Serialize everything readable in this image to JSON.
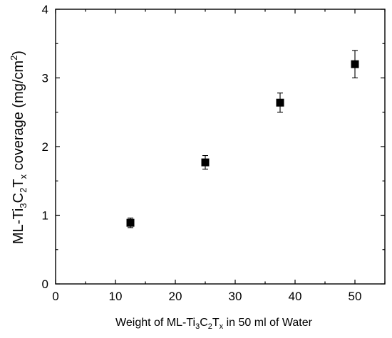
{
  "chart_data": {
    "type": "scatter",
    "title": "",
    "xlabel": {
      "prefix": "Weight of ML-Ti",
      "s1": "3",
      "mid1": "C",
      "s2": "2",
      "mid2": "T",
      "s3": "x",
      "suffix": " in 50 ml of Water"
    },
    "ylabel": {
      "prefix": "ML-Ti",
      "s1": "3",
      "mid1": "C",
      "s2": "2",
      "mid2": "T",
      "s3": "x",
      "mid3": " coverage (mg/cm",
      "sup": "2",
      "suffix": ")"
    },
    "xlim": [
      0,
      55
    ],
    "ylim": [
      0,
      4
    ],
    "xticks": [
      0,
      10,
      20,
      30,
      40,
      50
    ],
    "yticks": [
      0,
      1,
      2,
      3,
      4
    ],
    "grid": false,
    "marker": "filled-square",
    "color": "#000000",
    "series": [
      {
        "points": [
          {
            "x": 12.5,
            "y": 0.89,
            "err": 0.07
          },
          {
            "x": 25.0,
            "y": 1.77,
            "err": 0.1
          },
          {
            "x": 37.5,
            "y": 2.64,
            "err": 0.14
          },
          {
            "x": 50.0,
            "y": 3.2,
            "err": 0.2
          }
        ]
      }
    ]
  }
}
